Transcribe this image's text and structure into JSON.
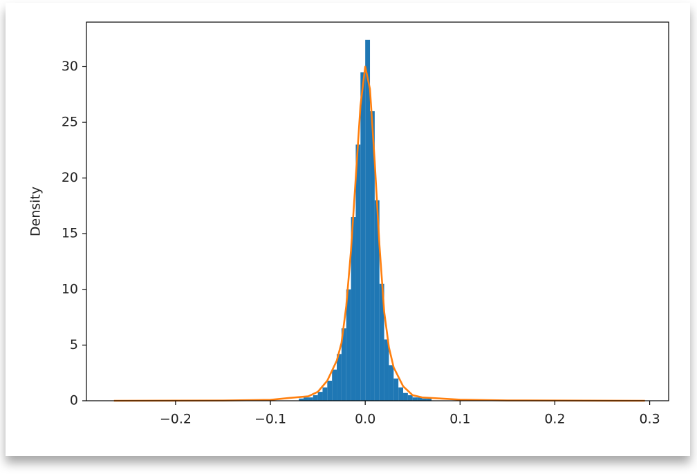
{
  "chart_data": {
    "type": "histogram",
    "ylabel": "Density",
    "color": "#1f77b4",
    "bins": [
      -0.265,
      -0.07,
      -0.065,
      -0.06,
      -0.055,
      -0.05,
      -0.045,
      -0.04,
      -0.035,
      -0.03,
      -0.025,
      -0.02,
      -0.015,
      -0.01,
      -0.005,
      0,
      0.005,
      0.01,
      0.015,
      0.02,
      0.025,
      0.03,
      0.035,
      0.04,
      0.045,
      0.05,
      0.055,
      0.06,
      0.065,
      0.07,
      0.295
    ],
    "values": [
      0.02,
      0.2,
      0.3,
      0.3,
      0.5,
      0.8,
      1.2,
      1.8,
      2.8,
      4.2,
      6.5,
      10,
      16.5,
      23,
      29.5,
      32.4,
      26,
      18,
      10.5,
      5.5,
      3.2,
      2.0,
      1.2,
      0.7,
      0.5,
      0.3,
      0.3,
      0.2,
      0.2,
      0.02
    ],
    "kde": {
      "color": "#ff7f0e",
      "x": [
        -0.265,
        -0.15,
        -0.1,
        -0.08,
        -0.06,
        -0.05,
        -0.04,
        -0.03,
        -0.025,
        -0.02,
        -0.015,
        -0.01,
        -0.005,
        0,
        0.005,
        0.01,
        0.015,
        0.02,
        0.025,
        0.03,
        0.04,
        0.05,
        0.06,
        0.08,
        0.1,
        0.15,
        0.295
      ],
      "values": [
        0,
        0.02,
        0.08,
        0.25,
        0.4,
        0.8,
        1.8,
        3.6,
        5.2,
        8.5,
        13.5,
        20,
        26.5,
        30,
        28,
        21.5,
        14,
        8,
        4.8,
        3,
        1.3,
        0.5,
        0.3,
        0.2,
        0.1,
        0.03,
        0
      ]
    },
    "xlim": [
      -0.294,
      0.32
    ],
    "ylim": [
      0,
      34
    ],
    "xticks": [
      {
        "value": -0.2,
        "label": "−0.2"
      },
      {
        "value": -0.1,
        "label": "−0.1"
      },
      {
        "value": 0,
        "label": "0.0"
      },
      {
        "value": 0.1,
        "label": "0.1"
      },
      {
        "value": 0.2,
        "label": "0.2"
      },
      {
        "value": 0.3,
        "label": "0.3"
      }
    ],
    "yticks": [
      0,
      5,
      10,
      15,
      20,
      25,
      30
    ]
  }
}
